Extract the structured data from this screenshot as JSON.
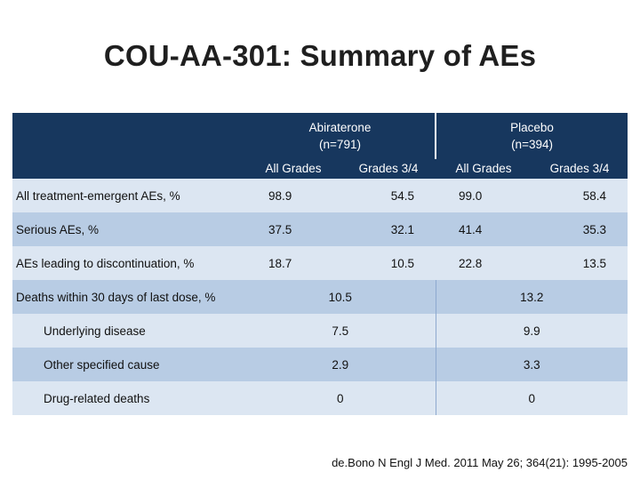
{
  "title": "COU-AA-301: Summary of AEs",
  "table": {
    "groups": [
      {
        "line1": "Abiraterone",
        "line2": "(n=791)"
      },
      {
        "line1": "Placebo",
        "line2": "(n=394)"
      }
    ],
    "subheaders": [
      "All Grades",
      "Grades 3/4",
      "All Grades",
      "Grades 3/4"
    ],
    "rows": [
      {
        "label": "All treatment-emergent AEs, %",
        "values": [
          "98.9",
          "54.5",
          "99.0",
          "58.4"
        ]
      },
      {
        "label": "Serious AEs, %",
        "values": [
          "37.5",
          "32.1",
          "41.4",
          "35.3"
        ]
      },
      {
        "label": "AEs leading to discontinuation, %",
        "values": [
          "18.7",
          "10.5",
          "22.8",
          "13.5"
        ]
      }
    ],
    "group_rows": [
      {
        "label": "Deaths within 30 days of last dose, %",
        "abiraterone": "10.5",
        "placebo": "13.2"
      },
      {
        "label": "Underlying disease",
        "abiraterone": "7.5",
        "placebo": "9.9"
      },
      {
        "label": "Other specified cause",
        "abiraterone": "2.9",
        "placebo": "3.3"
      },
      {
        "label": "Drug-related deaths",
        "abiraterone": "0",
        "placebo": "0"
      }
    ]
  },
  "source": "de.Bono N Engl J Med. 2011 May 26; 364(21): 1995-2005"
}
